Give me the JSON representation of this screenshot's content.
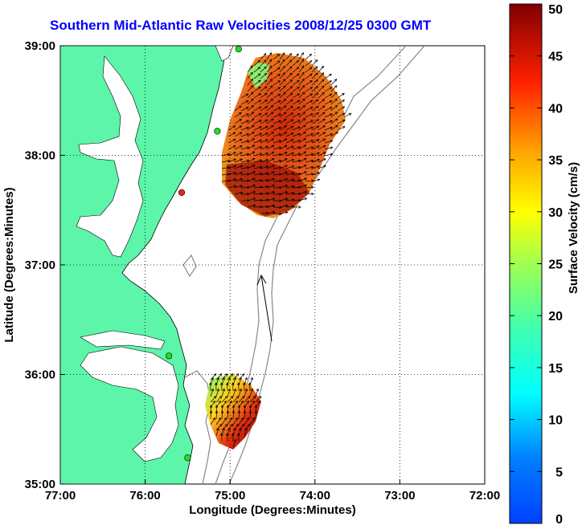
{
  "title": "Southern Mid-Atlantic Raw Velocities 2008/12/25 0300 GMT",
  "map": {
    "x_axis": {
      "label": "Longitude (Degrees:Minutes)",
      "ticks": [
        {
          "value": -77,
          "label": "77:00"
        },
        {
          "value": -76,
          "label": "76:00"
        },
        {
          "value": -75,
          "label": "75:00"
        },
        {
          "value": -74,
          "label": "74:00"
        },
        {
          "value": -73,
          "label": "73:00"
        },
        {
          "value": -72,
          "label": "72:00"
        }
      ],
      "range": [
        -77,
        -72
      ]
    },
    "y_axis": {
      "label": "Latitude (Degrees:Minutes)",
      "ticks": [
        {
          "value": 39,
          "label": "39:00"
        },
        {
          "value": 38,
          "label": "38:00"
        },
        {
          "value": 37,
          "label": "37:00"
        },
        {
          "value": 36,
          "label": "36:00"
        },
        {
          "value": 35,
          "label": "35:00"
        }
      ],
      "range": [
        35,
        39
      ]
    },
    "grid": "dotted",
    "land_color": "#5cf5aa",
    "stations": [
      {
        "lon": -74.9,
        "lat": 38.97,
        "color": "#22dd22"
      },
      {
        "lon": -75.15,
        "lat": 38.22,
        "color": "#22dd22"
      },
      {
        "lon": -75.57,
        "lat": 37.66,
        "color": "#ee2222"
      },
      {
        "lon": -75.72,
        "lat": 36.17,
        "color": "#22dd22"
      },
      {
        "lon": -75.5,
        "lat": 35.24,
        "color": "#22dd22"
      }
    ],
    "reference_arrow": {
      "lon": -74.41,
      "lat": 36.28,
      "u_cm_s": -4,
      "v_cm_s": 30
    }
  },
  "colorbar": {
    "label": "Surface Velocity (cm/s)",
    "ticks": [
      "0",
      "5",
      "10",
      "15",
      "20",
      "25",
      "30",
      "35",
      "40",
      "45",
      "50"
    ],
    "min": 0,
    "max": 50,
    "colormap": "jet"
  }
}
